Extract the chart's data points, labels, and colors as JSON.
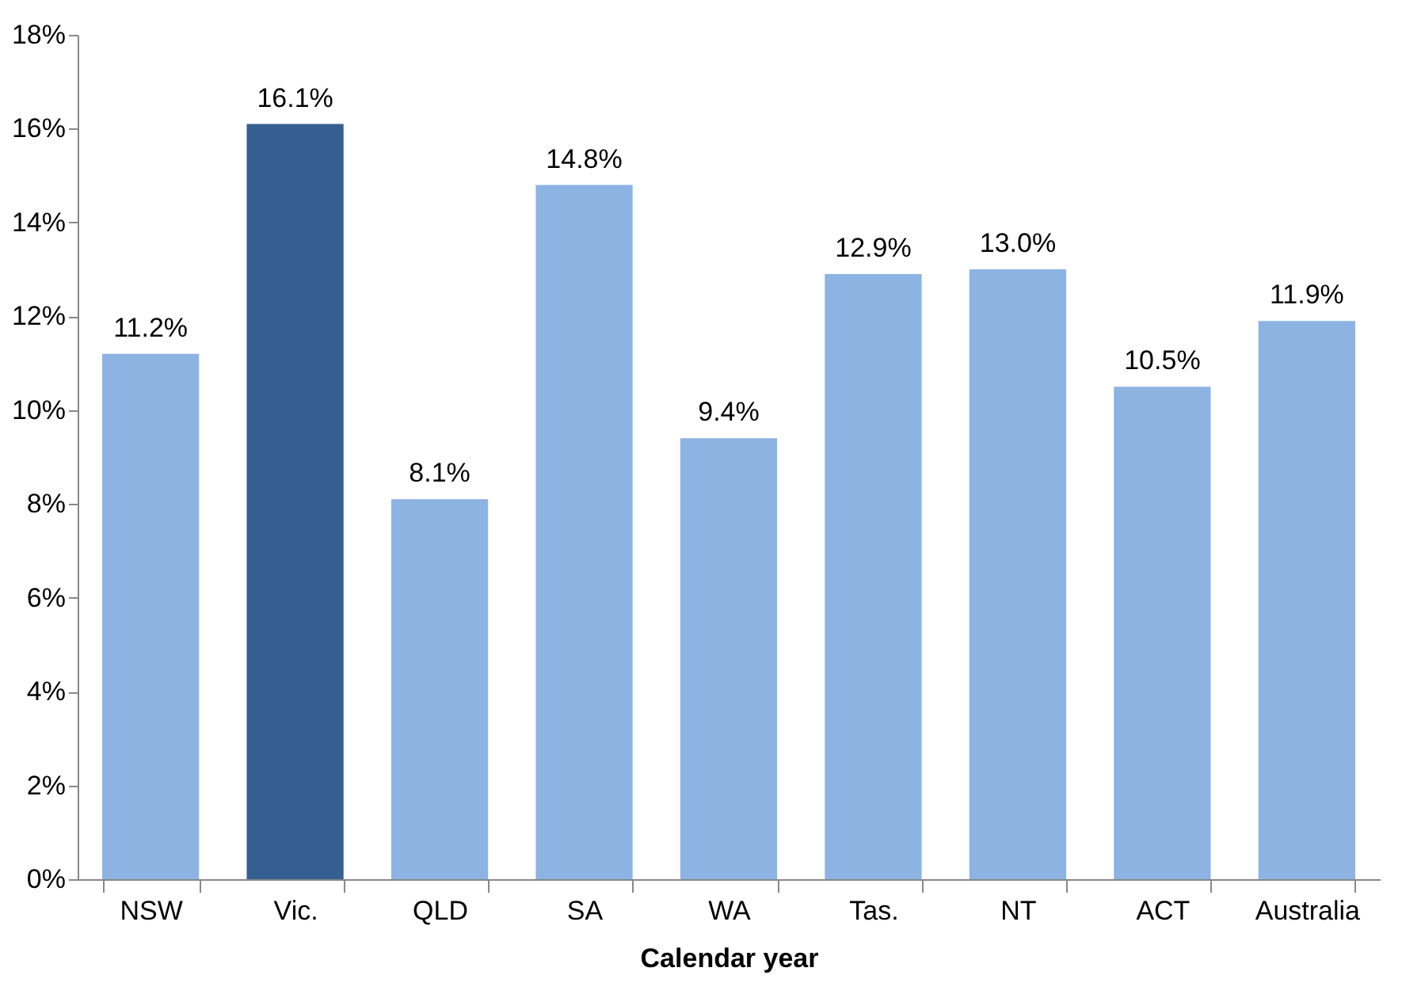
{
  "chart_data": {
    "type": "bar",
    "xlabel": "Calendar year",
    "categories": [
      "NSW",
      "Vic.",
      "QLD",
      "SA",
      "WA",
      "Tas.",
      "NT",
      "ACT",
      "Australia"
    ],
    "values": [
      11.2,
      16.1,
      8.1,
      14.8,
      9.4,
      12.9,
      13.0,
      10.5,
      11.9
    ],
    "colors": [
      "#8db3e2",
      "#355f91",
      "#8db3e2",
      "#8db3e2",
      "#8db3e2",
      "#8db3e2",
      "#8db3e2",
      "#8db3e2",
      "#8db3e2"
    ],
    "value_labels": [
      "11.2%",
      "16.1%",
      "8.1%",
      "14.8%",
      "9.4%",
      "12.9%",
      "13.0%",
      "10.5%",
      "11.9%"
    ],
    "ylim": [
      0,
      18
    ],
    "yticks": [
      {
        "value": 0,
        "label": "0%"
      },
      {
        "value": 2,
        "label": "2%"
      },
      {
        "value": 4,
        "label": "4%"
      },
      {
        "value": 6,
        "label": "6%"
      },
      {
        "value": 8,
        "label": "8%"
      },
      {
        "value": 10,
        "label": "10%"
      },
      {
        "value": 12,
        "label": "12%"
      },
      {
        "value": 14,
        "label": "14%"
      },
      {
        "value": 16,
        "label": "16%"
      },
      {
        "value": 18,
        "label": "18%"
      }
    ],
    "grid": false
  }
}
